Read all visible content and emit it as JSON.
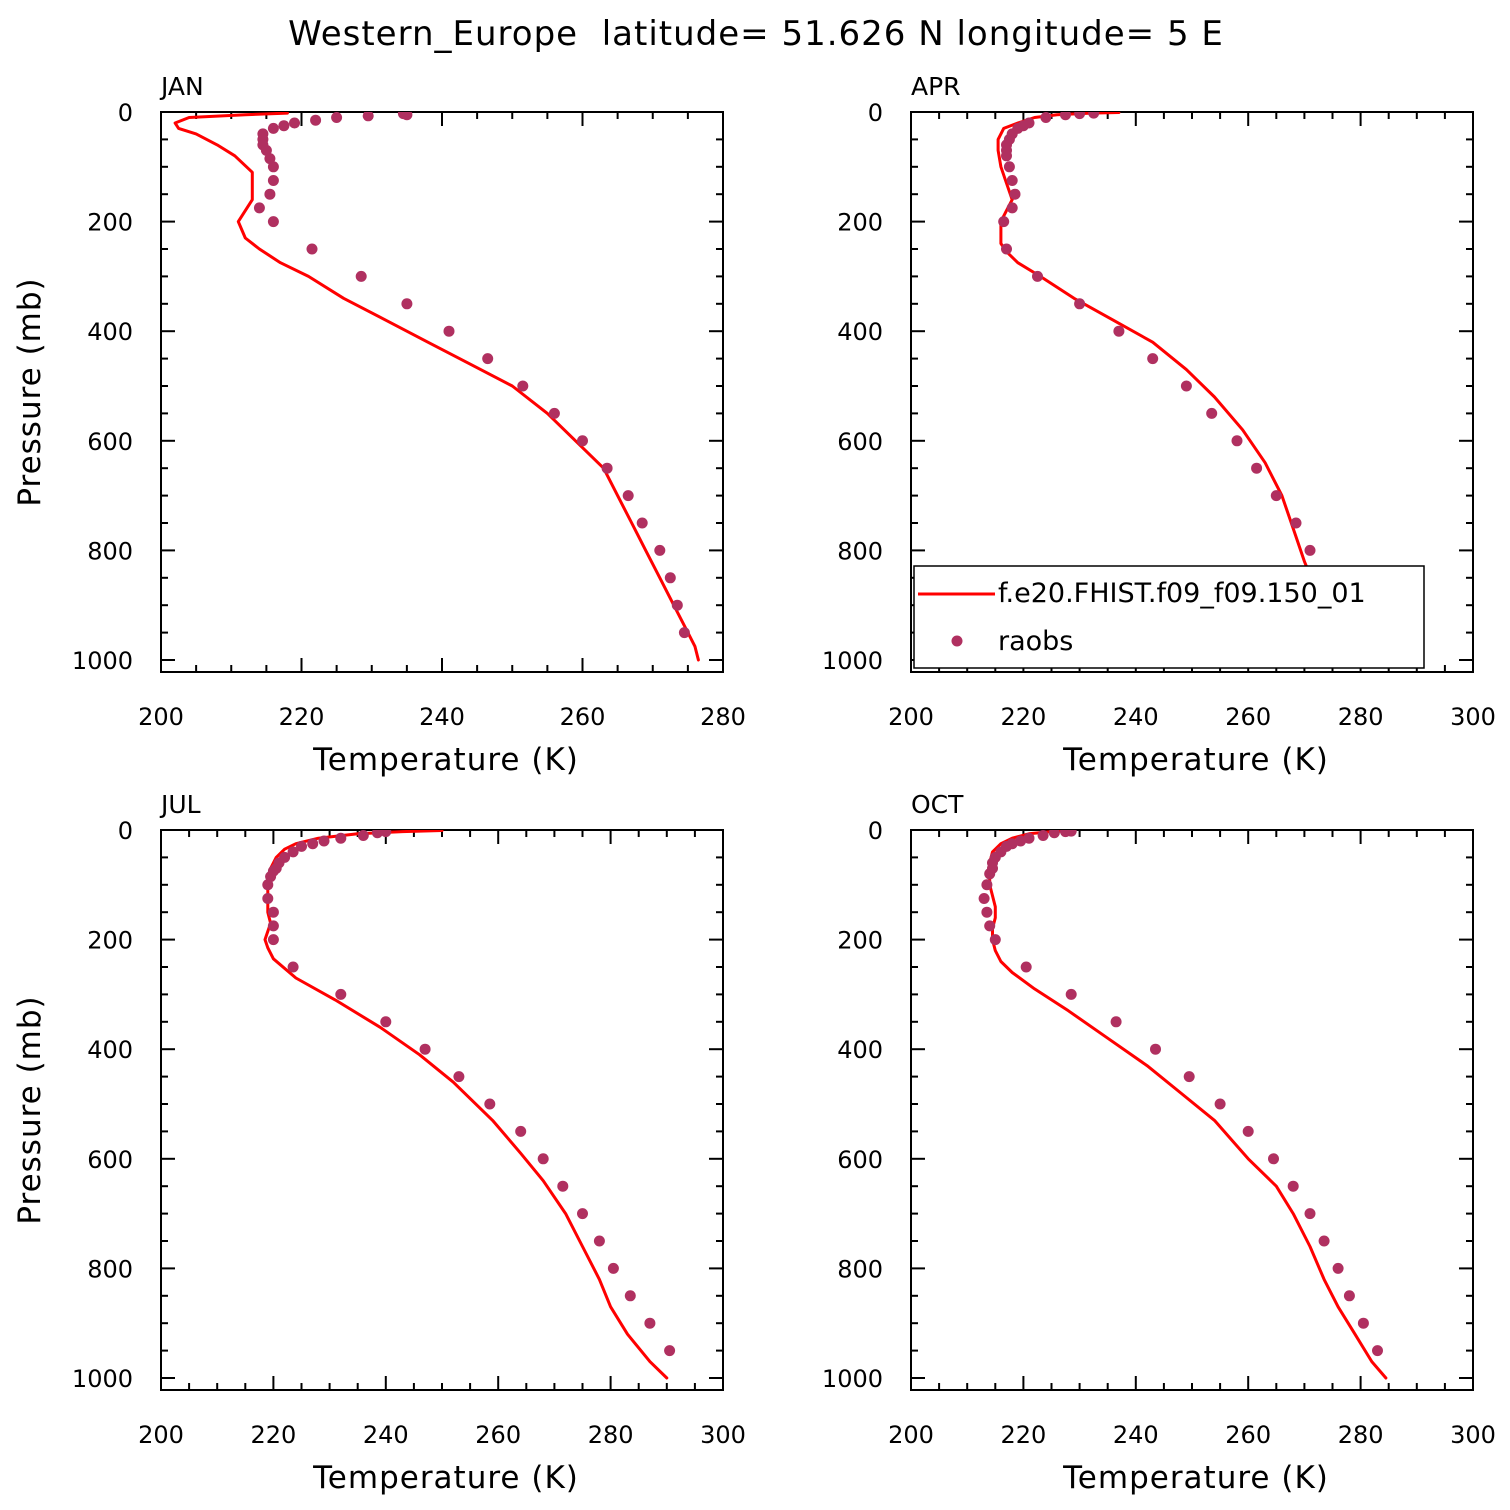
{
  "figure_title": "Western_Europe  latitude= 51.626 N longitude= 5 E",
  "legend": {
    "model_label": "f.e20.FHIST.f09_f09.150_01",
    "obs_label": "raobs",
    "model_color": "#ff0000",
    "obs_color": "#b03060"
  },
  "chart_data": [
    {
      "type": "line",
      "panel": "JAN",
      "xlabel": "Temperature (K)",
      "ylabel": "Pressure (mb)",
      "xlim": [
        200,
        280
      ],
      "ylim": [
        1000,
        0
      ],
      "xticks": [
        200,
        220,
        240,
        260,
        280
      ],
      "yticks": [
        0,
        200,
        400,
        600,
        800,
        1000
      ],
      "series": [
        {
          "kind": "line",
          "x": [
            218,
            212,
            204,
            202,
            202.5,
            205,
            208,
            210.5,
            213,
            213,
            213,
            211,
            212,
            214,
            217,
            221,
            226,
            232,
            238,
            244,
            250,
            255,
            259,
            263,
            265,
            267,
            269,
            271,
            273,
            275,
            276,
            276.5
          ],
          "y": [
            2,
            5,
            10,
            20,
            30,
            40,
            60,
            80,
            110,
            130,
            160,
            200,
            230,
            250,
            275,
            300,
            340,
            380,
            420,
            460,
            500,
            550,
            600,
            650,
            700,
            750,
            800,
            850,
            900,
            950,
            975,
            1000
          ]
        },
        {
          "kind": "scatter",
          "x": [
            234.5,
            235,
            229.5,
            225,
            222,
            219,
            217.5,
            216,
            214.5,
            214.5,
            214.5,
            215,
            215.5,
            216,
            216,
            215.5,
            214,
            216,
            221.5,
            228.5,
            235,
            241,
            246.5,
            251.5,
            256,
            260,
            263.5,
            266.5,
            268.5,
            271,
            272.5,
            273.5,
            274.5
          ],
          "y": [
            3,
            5,
            7,
            10,
            15,
            20,
            25,
            30,
            40,
            50,
            60,
            70,
            85,
            100,
            125,
            150,
            175,
            200,
            250,
            300,
            350,
            400,
            450,
            500,
            550,
            600,
            650,
            700,
            750,
            800,
            850,
            900,
            950
          ]
        }
      ]
    },
    {
      "type": "line",
      "panel": "APR",
      "xlabel": "Temperature (K)",
      "ylabel": "",
      "xlim": [
        200,
        300
      ],
      "ylim": [
        1000,
        0
      ],
      "xticks": [
        200,
        220,
        240,
        260,
        280,
        300
      ],
      "yticks": [
        0,
        200,
        400,
        600,
        800,
        1000
      ],
      "series": [
        {
          "kind": "line",
          "x": [
            237,
            232,
            226,
            222,
            219,
            216.5,
            215.5,
            215.5,
            216,
            217,
            218,
            217,
            216,
            216,
            216,
            217,
            219,
            223,
            229,
            236,
            243,
            249,
            254,
            259,
            263,
            266,
            268,
            270,
            272,
            275,
            279,
            282
          ],
          "y": [
            1,
            2,
            5,
            10,
            20,
            30,
            50,
            70,
            100,
            130,
            160,
            180,
            200,
            220,
            240,
            255,
            275,
            300,
            340,
            380,
            420,
            470,
            520,
            580,
            640,
            700,
            760,
            820,
            870,
            920,
            970,
            1000
          ]
        },
        {
          "kind": "scatter",
          "x": [
            232.5,
            230,
            227.5,
            224,
            221,
            220,
            219,
            218,
            217.5,
            217,
            217,
            217,
            217.5,
            218,
            218.5,
            218,
            216.5,
            217,
            222.5,
            230,
            237,
            243,
            249,
            253.5,
            258,
            261.5,
            265,
            268.5,
            271,
            273.5,
            276.5,
            281
          ],
          "y": [
            2,
            3,
            5,
            10,
            20,
            25,
            30,
            40,
            50,
            60,
            70,
            80,
            100,
            125,
            150,
            175,
            200,
            250,
            300,
            350,
            400,
            450,
            500,
            550,
            600,
            650,
            700,
            750,
            800,
            850,
            900,
            950
          ]
        }
      ]
    },
    {
      "type": "line",
      "panel": "JUL",
      "xlabel": "Temperature (K)",
      "ylabel": "Pressure (mb)",
      "xlim": [
        200,
        300
      ],
      "ylim": [
        1000,
        0
      ],
      "xticks": [
        200,
        220,
        240,
        260,
        280,
        300
      ],
      "yticks": [
        0,
        200,
        400,
        600,
        800,
        1000
      ],
      "series": [
        {
          "kind": "line",
          "x": [
            250,
            243,
            235,
            228,
            224,
            222,
            220.5,
            219.5,
            219,
            219,
            219,
            219,
            219.5,
            219,
            218.5,
            219,
            220,
            224,
            231,
            239,
            246,
            252,
            259,
            264,
            268,
            272,
            275,
            278,
            280,
            283,
            287,
            290
          ],
          "y": [
            1,
            3,
            7,
            15,
            25,
            35,
            50,
            70,
            90,
            110,
            130,
            150,
            170,
            185,
            200,
            215,
            235,
            270,
            310,
            360,
            410,
            460,
            530,
            590,
            640,
            700,
            760,
            820,
            870,
            920,
            970,
            1000
          ]
        },
        {
          "kind": "scatter",
          "x": [
            240,
            238.5,
            236,
            232,
            229,
            227,
            225,
            223.5,
            222,
            221,
            220.5,
            220,
            219.5,
            219,
            219,
            220,
            220,
            220,
            223.5,
            232,
            240,
            247,
            253,
            258.5,
            264,
            268,
            271.5,
            275,
            278,
            280.5,
            283.5,
            287,
            290.5
          ],
          "y": [
            3,
            5,
            10,
            15,
            20,
            25,
            30,
            40,
            50,
            60,
            70,
            75,
            85,
            100,
            125,
            150,
            175,
            200,
            250,
            300,
            350,
            400,
            450,
            500,
            550,
            600,
            650,
            700,
            750,
            800,
            850,
            900,
            950
          ]
        }
      ]
    },
    {
      "type": "line",
      "panel": "OCT",
      "xlabel": "Temperature (K)",
      "ylabel": "",
      "xlim": [
        200,
        300
      ],
      "ylim": [
        1000,
        0
      ],
      "xticks": [
        200,
        220,
        240,
        260,
        280,
        300
      ],
      "yticks": [
        0,
        200,
        400,
        600,
        800,
        1000
      ],
      "series": [
        {
          "kind": "line",
          "x": [
            229,
            225,
            221,
            218,
            216,
            214.5,
            214,
            214,
            214,
            214.5,
            215,
            215,
            214.5,
            214.5,
            215,
            216,
            218,
            222,
            228,
            235,
            242,
            248,
            254,
            260,
            265,
            268,
            271,
            273.5,
            276,
            279,
            282,
            284.5
          ],
          "y": [
            1,
            3,
            7,
            15,
            25,
            40,
            60,
            80,
            100,
            120,
            140,
            160,
            180,
            200,
            220,
            240,
            260,
            290,
            330,
            380,
            430,
            480,
            530,
            600,
            650,
            700,
            760,
            820,
            870,
            920,
            970,
            1000
          ]
        },
        {
          "kind": "scatter",
          "x": [
            228.5,
            227.5,
            225.5,
            223.5,
            221,
            219.5,
            218,
            217,
            216,
            215,
            214.5,
            214.5,
            214,
            213.5,
            213,
            213.5,
            214,
            215,
            220.5,
            228.5,
            236.5,
            243.5,
            249.5,
            255,
            260,
            264.5,
            268,
            271,
            273.5,
            276,
            278,
            280.5,
            283
          ],
          "y": [
            2,
            3,
            5,
            10,
            15,
            20,
            25,
            30,
            40,
            50,
            60,
            70,
            80,
            100,
            125,
            150,
            175,
            200,
            250,
            300,
            350,
            400,
            450,
            500,
            550,
            600,
            650,
            700,
            750,
            800,
            850,
            900,
            950
          ]
        }
      ]
    }
  ]
}
